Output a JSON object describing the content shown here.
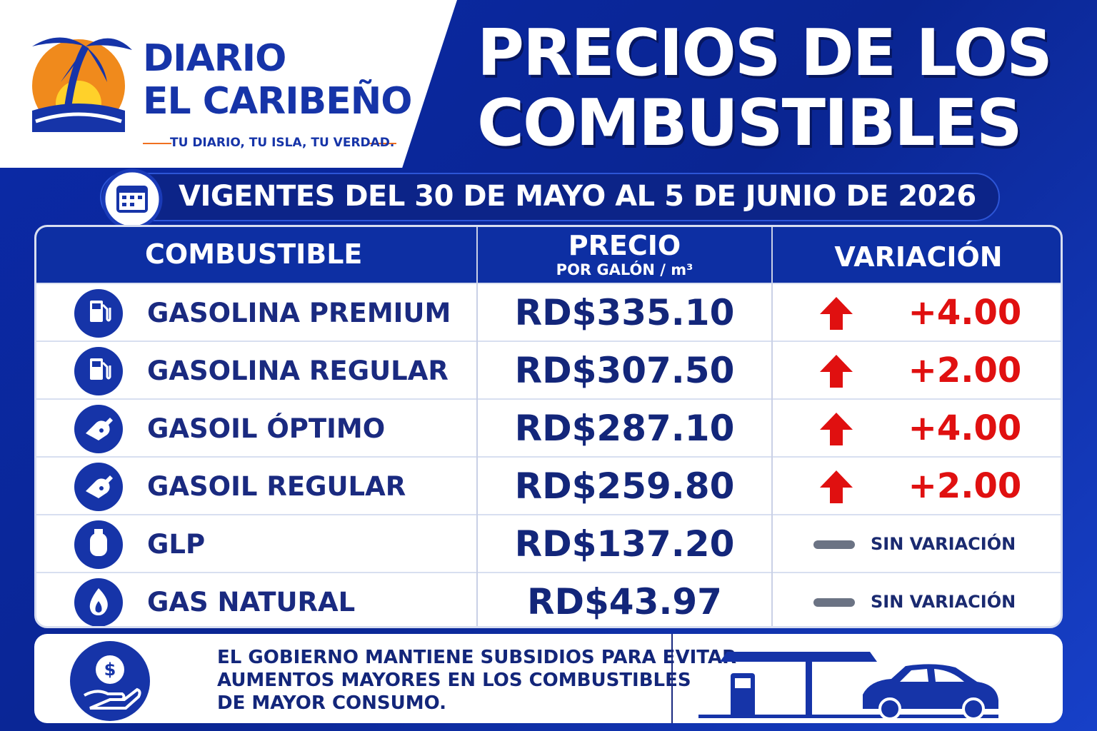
{
  "logo": {
    "line1": "DIARIO",
    "line2": "EL CARIBEÑO",
    "tagline": "TU DIARIO, TU ISLA, TU VERDAD."
  },
  "title": {
    "line1": "PRECIOS DE LOS",
    "line2": "COMBUSTIBLES"
  },
  "validity": "VIGENTES DEL 30 DE MAYO AL 5 DE JUNIO DE 2026",
  "table": {
    "header": {
      "fuel": "COMBUSTIBLE",
      "price": "PRECIO",
      "price_unit": "POR GALÓN / m³",
      "variation": "VARIACIÓN"
    },
    "rows": [
      {
        "fuel": "GASOLINA PREMIUM",
        "price": "RD$335.10",
        "variation": "+4.00"
      },
      {
        "fuel": "GASOLINA REGULAR",
        "price": "RD$307.50",
        "variation": "+2.00"
      },
      {
        "fuel": "GASOIL ÓPTIMO",
        "price": "RD$287.10",
        "variation": "+4.00"
      },
      {
        "fuel": "GASOIL REGULAR",
        "price": "RD$259.80",
        "variation": "+2.00"
      },
      {
        "fuel": "GLP",
        "price": "RD$137.20",
        "variation": "SIN VARIACIÓN"
      },
      {
        "fuel": "GAS NATURAL",
        "price": "RD$43.97",
        "variation": "SIN VARIACIÓN"
      }
    ]
  },
  "footer": {
    "lines": [
      "EL GOBIERNO MANTIENE SUBSIDIOS PARA EVITAR",
      "AUMENTOS MAYORES EN LOS COMBUSTIBLES",
      "DE MAYOR CONSUMO."
    ]
  }
}
